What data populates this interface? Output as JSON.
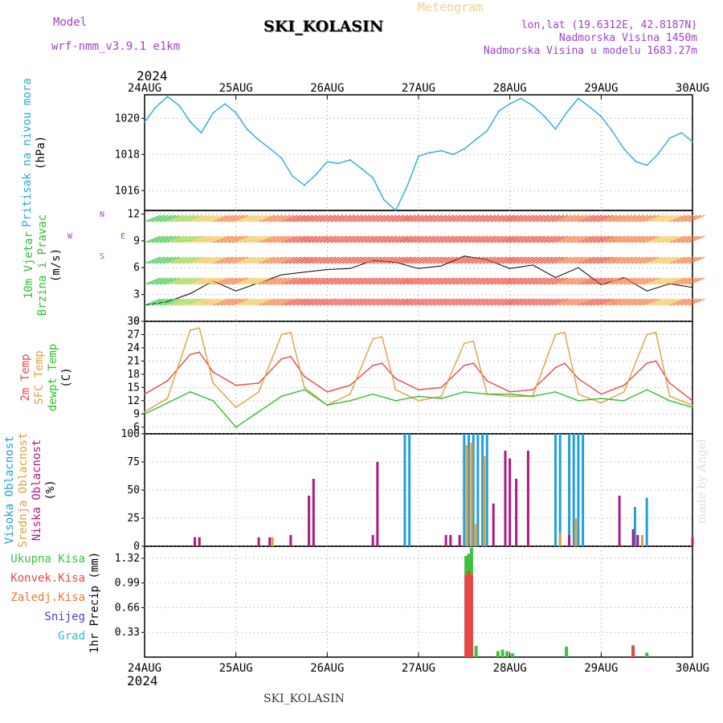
{
  "header": {
    "model_label": "Model",
    "model_name": "wrf-nmm_v3.9.1 e1km",
    "product": "Meteogram",
    "station": "SKI_KOLASIN",
    "lonlat": "lon,lat (19.6312E, 42.8187N)",
    "elevation": "Nadmorska Visina 1450m",
    "model_elevation": "Nadmorska Visina u modelu 1683.27m",
    "footer_station": "SKI_KOLASIN",
    "credit": "made by Angel",
    "year_top": "2024",
    "year_bottom": "2024"
  },
  "colors": {
    "pressure": "#2aa8e0",
    "temp2m": "#e84848",
    "sfc_temp": "#e0a040",
    "dewpoint": "#30c030",
    "cloud_high": "#1ea0e0",
    "cloud_mid": "#e0a040",
    "cloud_low": "#b01880",
    "precip_total": "#40c040",
    "precip_conv": "#e84848",
    "precip_frozen": "#f07830",
    "snow": "#4040e0",
    "hail": "#30c0c0",
    "frame": "#000000"
  },
  "chart_data": [
    {
      "type": "line",
      "panel": "pressure",
      "ylabel_lines": [
        "Pritisak na nivou mora",
        "(hPa)"
      ],
      "x_categories": [
        "24AUG",
        "25AUG",
        "26AUG",
        "27AUG",
        "28AUG",
        "29AUG",
        "30AUG"
      ],
      "yticks": [
        1016,
        1018,
        1020
      ],
      "ylim": [
        1014.9,
        1021.3
      ],
      "grid": true,
      "series": [
        {
          "key": "pressure",
          "x": [
            0,
            0.12,
            0.25,
            0.38,
            0.5,
            0.62,
            0.75,
            0.88,
            1.0,
            1.12,
            1.25,
            1.38,
            1.5,
            1.62,
            1.75,
            1.88,
            2.0,
            2.12,
            2.25,
            2.38,
            2.5,
            2.62,
            2.75,
            2.88,
            3.0,
            3.12,
            3.25,
            3.38,
            3.5,
            3.62,
            3.75,
            3.88,
            4.0,
            4.12,
            4.25,
            4.38,
            4.5,
            4.62,
            4.75,
            4.88,
            5.0,
            5.12,
            5.25,
            5.38,
            5.5,
            5.62,
            5.75,
            5.88,
            6.0
          ],
          "values": [
            1019.8,
            1020.6,
            1021.2,
            1020.7,
            1019.8,
            1019.2,
            1020.3,
            1020.8,
            1020.3,
            1019.4,
            1018.8,
            1018.3,
            1017.8,
            1016.8,
            1016.3,
            1016.9,
            1017.6,
            1017.5,
            1017.7,
            1017.2,
            1016.7,
            1015.5,
            1014.9,
            1016.3,
            1017.9,
            1018.1,
            1018.2,
            1018.0,
            1018.3,
            1018.8,
            1019.3,
            1020.4,
            1020.8,
            1021.1,
            1020.7,
            1020.1,
            1019.4,
            1020.3,
            1021.1,
            1020.6,
            1020.1,
            1019.3,
            1018.3,
            1017.6,
            1017.4,
            1018.0,
            1018.9,
            1019.2,
            1018.7
          ]
        }
      ]
    },
    {
      "type": "line",
      "panel": "wind",
      "ylabel_lines": [
        "10m Vjetar",
        "Brzina i Pravac",
        "(m/s)"
      ],
      "compass": [
        "N",
        "E",
        "S",
        "W"
      ],
      "yticks": [
        0,
        3,
        6,
        9,
        12
      ],
      "ylim": [
        0,
        12.4
      ],
      "grid": true,
      "series": [
        {
          "key": "wind_speed",
          "x": [
            0,
            0.25,
            0.5,
            0.75,
            1.0,
            1.25,
            1.5,
            1.75,
            2.0,
            2.25,
            2.5,
            2.75,
            3.0,
            3.25,
            3.5,
            3.75,
            4.0,
            4.25,
            4.5,
            4.75,
            5.0,
            5.25,
            5.5,
            5.75,
            6.0
          ],
          "values": [
            1.8,
            2.2,
            3.1,
            4.5,
            3.4,
            4.3,
            5.2,
            5.5,
            5.8,
            5.9,
            6.8,
            6.6,
            5.9,
            6.2,
            7.3,
            6.9,
            5.9,
            6.3,
            4.9,
            6.0,
            4.1,
            4.9,
            3.4,
            4.2,
            3.8
          ]
        }
      ]
    },
    {
      "type": "line",
      "panel": "temperature",
      "ylabel_lines": [
        "2m Temp",
        "SFC Temp",
        "dewpt Temp",
        "(C)"
      ],
      "yticks": [
        6,
        9,
        12,
        15,
        18,
        21,
        24,
        27,
        30
      ],
      "ylim": [
        4.5,
        30
      ],
      "grid": true,
      "series": [
        {
          "name": "2m Temp",
          "key": "temp2m",
          "x": [
            0,
            0.25,
            0.5,
            0.6,
            0.75,
            1.0,
            1.25,
            1.5,
            1.6,
            1.75,
            2.0,
            2.25,
            2.5,
            2.6,
            2.75,
            3.0,
            3.25,
            3.5,
            3.6,
            3.75,
            4.0,
            4.25,
            4.5,
            4.6,
            4.75,
            5.0,
            5.25,
            5.5,
            5.6,
            5.75,
            6.0
          ],
          "values": [
            13.5,
            16.5,
            22.5,
            23.0,
            18.5,
            15.5,
            16.0,
            21.5,
            22.0,
            17.5,
            14.0,
            15.5,
            20.0,
            20.5,
            17.0,
            14.5,
            15.0,
            20.0,
            20.5,
            16.5,
            14.0,
            14.5,
            19.5,
            20.5,
            17.0,
            13.5,
            15.5,
            20.5,
            21.0,
            16.0,
            12.0
          ]
        },
        {
          "name": "SFC Temp",
          "key": "sfc_temp",
          "x": [
            0,
            0.25,
            0.5,
            0.6,
            0.75,
            1.0,
            1.25,
            1.5,
            1.6,
            1.75,
            2.0,
            2.25,
            2.5,
            2.6,
            2.75,
            3.0,
            3.25,
            3.5,
            3.6,
            3.75,
            4.0,
            4.25,
            4.5,
            4.6,
            4.75,
            5.0,
            5.25,
            5.5,
            5.6,
            5.75,
            6.0
          ],
          "values": [
            9.5,
            12.5,
            28.0,
            28.5,
            16.0,
            10.5,
            14.0,
            27.0,
            27.5,
            15.0,
            11.0,
            13.5,
            26.0,
            26.5,
            14.5,
            12.0,
            13.0,
            25.0,
            25.5,
            13.5,
            13.0,
            13.0,
            27.0,
            27.5,
            13.5,
            11.5,
            14.0,
            27.0,
            27.5,
            13.0,
            11.0
          ]
        },
        {
          "name": "dewpt Temp",
          "key": "dewpoint",
          "x": [
            0,
            0.25,
            0.5,
            0.75,
            1.0,
            1.25,
            1.5,
            1.75,
            2.0,
            2.25,
            2.5,
            2.75,
            3.0,
            3.25,
            3.5,
            3.75,
            4.0,
            4.25,
            4.5,
            4.75,
            5.0,
            5.25,
            5.5,
            5.75,
            6.0
          ],
          "values": [
            9.0,
            11.5,
            14.0,
            12.0,
            6.0,
            9.5,
            13.0,
            14.5,
            11.0,
            12.0,
            13.5,
            12.0,
            13.0,
            12.5,
            14.0,
            13.5,
            13.5,
            13.0,
            14.0,
            12.0,
            12.5,
            12.0,
            14.5,
            12.0,
            10.5
          ]
        }
      ]
    },
    {
      "type": "bar",
      "panel": "clouds",
      "ylabel_lines": [
        "Visoka Oblacnost",
        "Srednja Oblacnost",
        "Niska Oblacnost",
        "(%)"
      ],
      "yticks": [
        0,
        25,
        50,
        75,
        100
      ],
      "ylim": [
        0,
        100
      ],
      "grid": true,
      "series": [
        {
          "name": "Visoka Oblacnost",
          "key": "cloud_high",
          "x": [
            2.85,
            2.9,
            3.5,
            3.55,
            3.6,
            3.65,
            3.7,
            3.75,
            4.5,
            4.55,
            4.65,
            4.7,
            4.75,
            4.8,
            5.37,
            5.5
          ],
          "values": [
            100,
            100,
            100,
            100,
            100,
            100,
            100,
            100,
            100,
            100,
            100,
            100,
            100,
            100,
            35,
            43
          ]
        },
        {
          "name": "Srednja Oblacnost",
          "key": "cloud_mid",
          "x": [
            0.6,
            1.4,
            3.53,
            3.58,
            3.63,
            3.72,
            4.55,
            4.72,
            5.45
          ],
          "values": [
            8,
            8,
            90,
            92,
            20,
            80,
            12,
            25,
            10
          ]
        },
        {
          "name": "Niska Oblacnost",
          "key": "cloud_low",
          "x": [
            0.55,
            0.6,
            1.25,
            1.37,
            1.6,
            1.8,
            1.85,
            2.5,
            2.55,
            3.3,
            3.35,
            3.45,
            3.82,
            3.95,
            4.0,
            4.07,
            4.2,
            4.65,
            5.2,
            5.35,
            5.4,
            6.0
          ],
          "values": [
            8,
            8,
            8,
            8,
            10,
            45,
            60,
            10,
            75,
            10,
            10,
            10,
            38,
            85,
            78,
            60,
            85,
            10,
            45,
            15,
            10,
            8
          ]
        }
      ]
    },
    {
      "type": "bar",
      "panel": "precip",
      "ylabel_lines": [
        "1hr Precip (mm)"
      ],
      "legend": [
        "Ukupna Kisa",
        "Konvek.Kisa",
        "Zaledj.Kisa",
        "Snijeg",
        "Grad"
      ],
      "x_categories": [
        "24AUG",
        "25AUG",
        "26AUG",
        "27AUG",
        "28AUG",
        "29AUG",
        "30AUG"
      ],
      "yticks": [
        0.33,
        0.66,
        0.99,
        1.32
      ],
      "ylim": [
        0,
        1.48
      ],
      "grid": true,
      "series": [
        {
          "name": "Ukupna Kisa",
          "key": "precip_total",
          "x": [
            3.52,
            3.55,
            3.58,
            3.63,
            3.87,
            3.92,
            3.97,
            4.03,
            4.62,
            5.35,
            5.5
          ],
          "values": [
            1.35,
            1.38,
            1.46,
            0.15,
            0.08,
            0.1,
            0.08,
            0.05,
            0.14,
            0.16,
            0.06
          ]
        },
        {
          "name": "Konvek.Kisa",
          "key": "precip_conv",
          "x": [
            3.52,
            3.55,
            3.58,
            5.35
          ],
          "values": [
            1.1,
            1.15,
            1.1,
            0.14
          ]
        }
      ]
    }
  ]
}
